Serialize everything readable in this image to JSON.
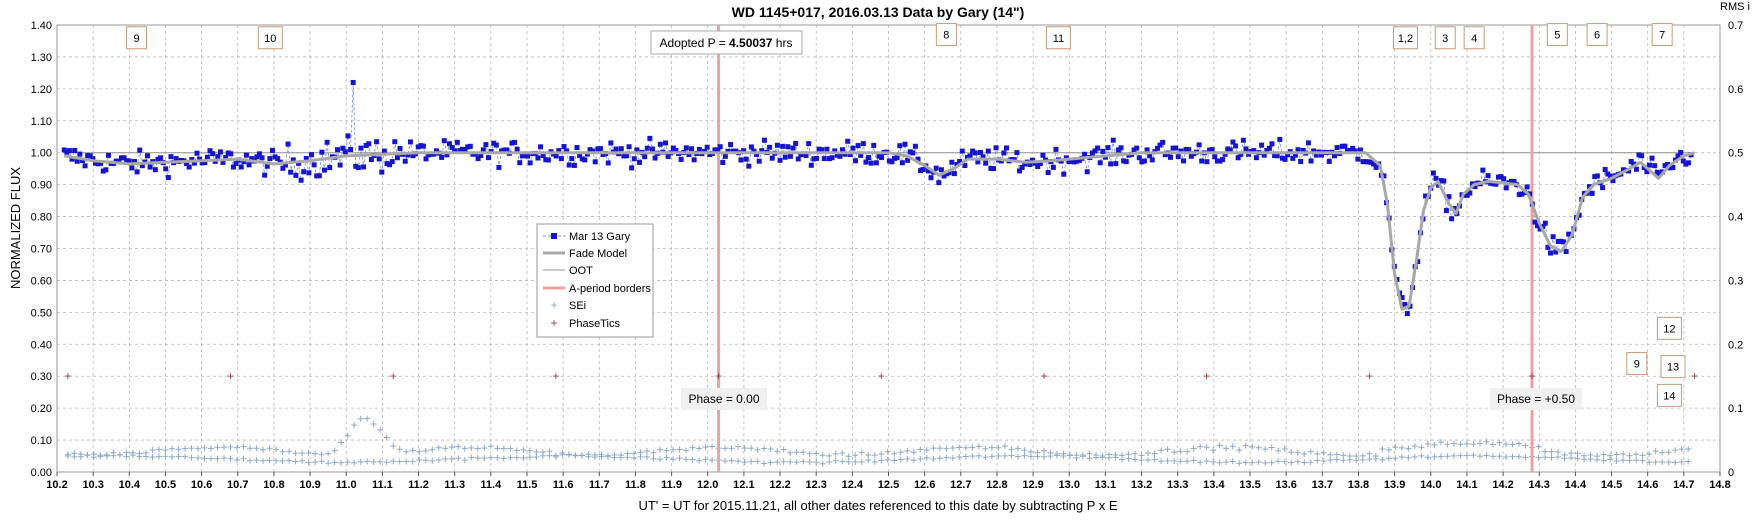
{
  "chart_data": {
    "type": "scatter",
    "title": "WD 1145+017, 2016.03.13 Data by Gary (14\")",
    "xlabel": "UT' = UT for 2015.11.21, all other dates referenced to this date by subtracting P x E",
    "ylabel": "NORMALIZED FLUX",
    "y2label": "RMS i",
    "xlim": [
      10.2,
      14.8
    ],
    "ylim": [
      0,
      1.4
    ],
    "y2lim": [
      0,
      0.7
    ],
    "grid": true,
    "legend_position": "center-left",
    "x_ticks": [
      "10.2",
      "10.3",
      "10.4",
      "10.5",
      "10.6",
      "10.7",
      "10.8",
      "10.9",
      "11.0",
      "11.1",
      "11.2",
      "11.3",
      "11.4",
      "11.5",
      "11.6",
      "11.7",
      "11.8",
      "11.9",
      "12.0",
      "12.1",
      "12.2",
      "12.3",
      "12.4",
      "12.5",
      "12.6",
      "12.7",
      "12.8",
      "12.9",
      "13.0",
      "13.1",
      "13.2",
      "13.3",
      "13.4",
      "13.5",
      "13.6",
      "13.7",
      "13.8",
      "13.9",
      "14.0",
      "14.1",
      "14.2",
      "14.3",
      "14.4",
      "14.5",
      "14.6",
      "14.7",
      "14.8"
    ],
    "y_ticks": [
      "0.00",
      "0.10",
      "0.20",
      "0.30",
      "0.40",
      "0.50",
      "0.60",
      "0.70",
      "0.80",
      "0.90",
      "1.00",
      "1.10",
      "1.20",
      "1.30",
      "1.40"
    ],
    "y2_ticks": [
      "0",
      "0.1",
      "0.2",
      "0.3",
      "0.4",
      "0.5",
      "0.6",
      "0.7"
    ],
    "legend": [
      "Mar 13 Gary",
      "Fade Model",
      "OOT",
      "A-period borders",
      "SEi",
      "PhaseTics"
    ],
    "adopted_period": {
      "prefix": "Adopted P = ",
      "value": "4.50037",
      "unit": " hrs"
    },
    "phase_labels": [
      "Phase = 0.00",
      "Phase = +0.50"
    ],
    "a_period_borders_x": [
      12.03,
      14.28
    ],
    "phase_tics": {
      "y": 0.3,
      "x": [
        10.23,
        10.68,
        11.13,
        11.58,
        12.03,
        12.48,
        12.93,
        13.38,
        13.83,
        14.28,
        14.73
      ]
    },
    "oot_level": 1.0,
    "fade_model": [
      [
        10.22,
        0.99
      ],
      [
        10.3,
        0.975
      ],
      [
        10.4,
        0.965
      ],
      [
        10.5,
        0.97
      ],
      [
        10.6,
        0.975
      ],
      [
        10.7,
        0.98
      ],
      [
        10.8,
        0.965
      ],
      [
        10.9,
        0.975
      ],
      [
        11.0,
        0.99
      ],
      [
        11.1,
        0.995
      ],
      [
        11.2,
        1.0
      ],
      [
        11.5,
        1.0
      ],
      [
        12.5,
        1.0
      ],
      [
        12.55,
        0.99
      ],
      [
        12.6,
        0.96
      ],
      [
        12.64,
        0.93
      ],
      [
        12.68,
        0.95
      ],
      [
        12.72,
        0.98
      ],
      [
        12.8,
        0.98
      ],
      [
        12.88,
        0.97
      ],
      [
        12.95,
        0.975
      ],
      [
        13.05,
        0.985
      ],
      [
        13.2,
        1.0
      ],
      [
        13.82,
        1.0
      ],
      [
        13.86,
        0.96
      ],
      [
        13.88,
        0.84
      ],
      [
        13.9,
        0.62
      ],
      [
        13.92,
        0.51
      ],
      [
        13.94,
        0.52
      ],
      [
        13.96,
        0.66
      ],
      [
        13.98,
        0.82
      ],
      [
        14.0,
        0.89
      ],
      [
        14.02,
        0.91
      ],
      [
        14.05,
        0.84
      ],
      [
        14.07,
        0.81
      ],
      [
        14.09,
        0.87
      ],
      [
        14.12,
        0.9
      ],
      [
        14.16,
        0.91
      ],
      [
        14.2,
        0.905
      ],
      [
        14.24,
        0.9
      ],
      [
        14.27,
        0.87
      ],
      [
        14.3,
        0.78
      ],
      [
        14.33,
        0.71
      ],
      [
        14.36,
        0.69
      ],
      [
        14.39,
        0.74
      ],
      [
        14.42,
        0.86
      ],
      [
        14.45,
        0.9
      ],
      [
        14.5,
        0.92
      ],
      [
        14.55,
        0.95
      ],
      [
        14.58,
        0.97
      ],
      [
        14.61,
        0.94
      ],
      [
        14.63,
        0.92
      ],
      [
        14.66,
        0.96
      ],
      [
        14.7,
        0.99
      ],
      [
        14.73,
        1.0
      ]
    ],
    "series": [
      {
        "name": "Mar 13 Gary",
        "type": "line-marker"
      },
      {
        "name": "SEi",
        "type": "marker"
      }
    ],
    "annotations": [
      {
        "label": "9",
        "x": 10.42,
        "y": 1.36
      },
      {
        "label": "10",
        "x": 10.79,
        "y": 1.36
      },
      {
        "label": "8",
        "x": 12.66,
        "y": 1.37
      },
      {
        "label": "11",
        "x": 12.97,
        "y": 1.36
      },
      {
        "label": "1,2",
        "x": 13.93,
        "y": 1.36
      },
      {
        "label": "3",
        "x": 14.04,
        "y": 1.36
      },
      {
        "label": "4",
        "x": 14.12,
        "y": 1.36
      },
      {
        "label": "5",
        "x": 14.35,
        "y": 1.37
      },
      {
        "label": "6",
        "x": 14.46,
        "y": 1.37
      },
      {
        "label": "7",
        "x": 14.64,
        "y": 1.37
      },
      {
        "label": "12",
        "x": 14.66,
        "y": 0.45
      },
      {
        "label": "9",
        "x": 14.57,
        "y": 0.34
      },
      {
        "label": "13",
        "x": 14.67,
        "y": 0.33
      },
      {
        "label": "14",
        "x": 14.66,
        "y": 0.24
      }
    ]
  },
  "colors": {
    "data": "#1515cc",
    "data_line": "#6f8fd8",
    "fade_model": "#a8a8a8",
    "oot": "#909090",
    "border": "#f0a0a0",
    "sei": "#8fa8c8",
    "phase_tic": "#9c3a3a",
    "annotation_border": "#c89a78"
  }
}
